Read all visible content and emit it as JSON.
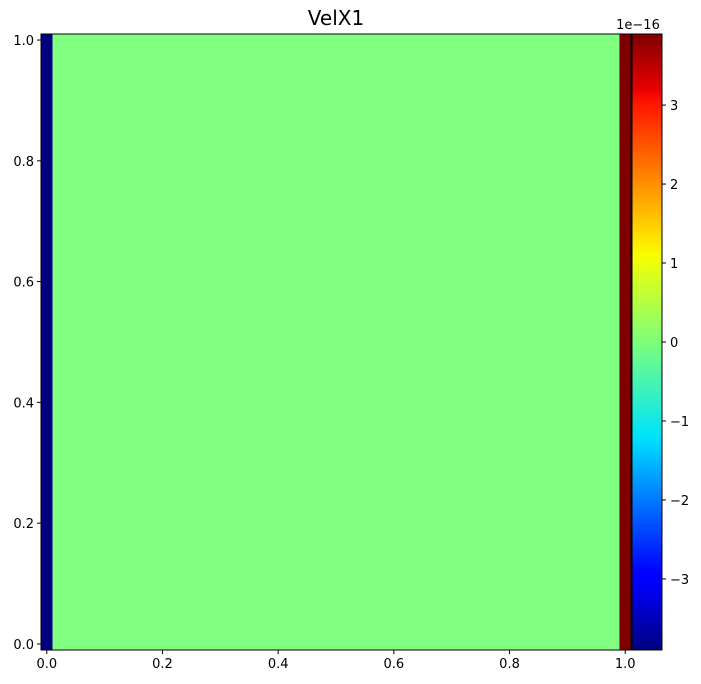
{
  "chart_data": {
    "type": "heatmap",
    "title": "VelX1",
    "xlabel": "",
    "ylabel": "",
    "xlim": [
      -0.01,
      1.01
    ],
    "ylim": [
      -0.01,
      1.01
    ],
    "xticks": [
      0.0,
      0.2,
      0.4,
      0.6,
      0.8,
      1.0
    ],
    "xtick_labels": [
      "0.0",
      "0.2",
      "0.4",
      "0.6",
      "0.8",
      "1.0"
    ],
    "yticks": [
      0.0,
      0.2,
      0.4,
      0.6,
      0.8,
      1.0
    ],
    "ytick_labels": [
      "0.0",
      "0.2",
      "0.4",
      "0.6",
      "0.8",
      "1.0"
    ],
    "cells": [
      {
        "x0": -0.01,
        "x1": 0.01,
        "y0": -0.01,
        "y1": 1.01,
        "value": -3.9e-16
      },
      {
        "x0": 0.01,
        "x1": 0.99,
        "y0": -0.01,
        "y1": 1.01,
        "value": 0.0
      },
      {
        "x0": 0.99,
        "x1": 1.01,
        "y0": -0.01,
        "y1": 1.01,
        "value": 3.9e-16
      }
    ],
    "colormap": "jet",
    "colorbar": {
      "range": [
        -3.9e-16,
        3.9e-16
      ],
      "offset_label": "1e−16",
      "ticks": [
        -3,
        -2,
        -1,
        0,
        1,
        2,
        3
      ],
      "tick_labels": [
        "−3",
        "−2",
        "−1",
        "0",
        "1",
        "2",
        "3"
      ]
    },
    "grid": false
  }
}
